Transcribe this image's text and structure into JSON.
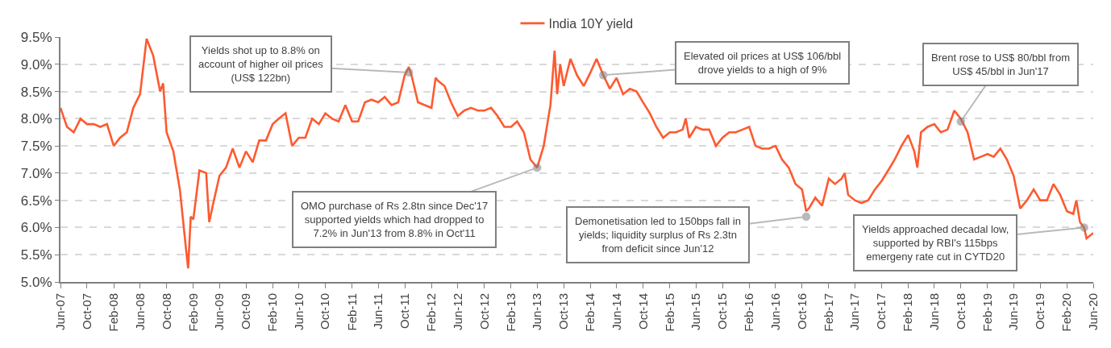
{
  "chart_data": {
    "type": "line",
    "x": [
      "2007-06-01",
      "2007-07-01",
      "2007-08-01",
      "2007-09-01",
      "2007-10-01",
      "2007-11-01",
      "2007-12-01",
      "2008-01-01",
      "2008-02-01",
      "2008-03-01",
      "2008-04-01",
      "2008-05-01",
      "2008-06-01",
      "2008-07-01",
      "2008-08-01",
      "2008-09-01",
      "2008-09-15",
      "2008-10-01",
      "2008-11-01",
      "2008-12-01",
      "2009-01-01",
      "2009-01-08",
      "2009-01-20",
      "2009-02-01",
      "2009-03-01",
      "2009-04-01",
      "2009-04-15",
      "2009-05-01",
      "2009-06-01",
      "2009-07-01",
      "2009-08-01",
      "2009-09-01",
      "2009-10-01",
      "2009-11-01",
      "2009-12-01",
      "2010-01-01",
      "2010-02-01",
      "2010-03-01",
      "2010-04-01",
      "2010-05-01",
      "2010-06-01",
      "2010-07-01",
      "2010-08-01",
      "2010-09-01",
      "2010-10-01",
      "2010-11-01",
      "2010-12-01",
      "2011-01-01",
      "2011-02-01",
      "2011-03-01",
      "2011-04-01",
      "2011-05-01",
      "2011-06-01",
      "2011-07-01",
      "2011-08-01",
      "2011-09-01",
      "2011-10-01",
      "2011-10-20",
      "2011-11-01",
      "2011-12-01",
      "2012-01-01",
      "2012-02-01",
      "2012-02-20",
      "2012-03-01",
      "2012-04-01",
      "2012-05-01",
      "2012-06-01",
      "2012-07-01",
      "2012-08-01",
      "2012-09-01",
      "2012-10-01",
      "2012-11-01",
      "2012-12-01",
      "2013-01-01",
      "2013-02-01",
      "2013-03-01",
      "2013-04-01",
      "2013-05-01",
      "2013-06-01",
      "2013-07-01",
      "2013-08-01",
      "2013-08-20",
      "2013-09-01",
      "2013-09-15",
      "2013-10-01",
      "2013-11-01",
      "2013-12-01",
      "2014-01-01",
      "2014-02-01",
      "2014-03-01",
      "2014-04-01",
      "2014-05-01",
      "2014-06-01",
      "2014-07-01",
      "2014-08-01",
      "2014-09-01",
      "2014-10-01",
      "2014-11-01",
      "2014-12-01",
      "2015-01-01",
      "2015-02-01",
      "2015-03-01",
      "2015-04-01",
      "2015-04-15",
      "2015-05-01",
      "2015-06-01",
      "2015-07-01",
      "2015-08-01",
      "2015-09-01",
      "2015-10-01",
      "2015-11-01",
      "2015-12-01",
      "2016-01-01",
      "2016-02-01",
      "2016-03-01",
      "2016-04-01",
      "2016-05-01",
      "2016-06-01",
      "2016-07-01",
      "2016-08-01",
      "2016-09-01",
      "2016-10-01",
      "2016-10-20",
      "2016-11-01",
      "2016-12-01",
      "2017-01-01",
      "2017-02-01",
      "2017-03-01",
      "2017-04-01",
      "2017-04-15",
      "2017-05-01",
      "2017-06-01",
      "2017-07-01",
      "2017-08-01",
      "2017-09-01",
      "2017-10-01",
      "2017-11-01",
      "2017-12-01",
      "2018-01-01",
      "2018-02-01",
      "2018-03-01",
      "2018-03-15",
      "2018-04-01",
      "2018-05-01",
      "2018-06-01",
      "2018-07-01",
      "2018-08-01",
      "2018-09-01",
      "2018-10-01",
      "2018-11-01",
      "2018-12-01",
      "2019-01-01",
      "2019-02-01",
      "2019-03-01",
      "2019-04-01",
      "2019-05-01",
      "2019-06-01",
      "2019-07-01",
      "2019-08-01",
      "2019-09-01",
      "2019-10-01",
      "2019-11-01",
      "2019-12-01",
      "2020-01-01",
      "2020-02-01",
      "2020-03-01",
      "2020-03-15",
      "2020-04-01",
      "2020-04-20",
      "2020-05-01",
      "2020-06-01"
    ],
    "series": [
      {
        "name": "India 10Y yield",
        "color": "#fe5a30",
        "values": [
          8.2,
          7.85,
          7.75,
          8.0,
          7.9,
          7.9,
          7.85,
          7.9,
          7.5,
          7.65,
          7.75,
          8.2,
          8.45,
          9.47,
          9.15,
          8.5,
          8.65,
          7.75,
          7.4,
          6.7,
          5.5,
          5.25,
          6.2,
          6.15,
          7.05,
          7.0,
          6.1,
          6.4,
          6.95,
          7.1,
          7.45,
          7.1,
          7.4,
          7.2,
          7.6,
          7.6,
          7.9,
          8.0,
          8.1,
          7.5,
          7.65,
          7.65,
          8.0,
          7.9,
          8.1,
          8.0,
          7.95,
          8.25,
          7.95,
          7.95,
          8.3,
          8.35,
          8.3,
          8.4,
          8.25,
          8.3,
          8.8,
          8.95,
          8.8,
          8.3,
          8.25,
          8.2,
          8.75,
          8.7,
          8.6,
          8.3,
          8.05,
          8.15,
          8.2,
          8.15,
          8.15,
          8.2,
          8.05,
          7.85,
          7.85,
          7.95,
          7.75,
          7.25,
          7.1,
          7.5,
          8.25,
          9.25,
          8.45,
          9.0,
          8.6,
          9.1,
          8.8,
          8.6,
          8.85,
          9.1,
          8.8,
          8.55,
          8.75,
          8.45,
          8.55,
          8.5,
          8.3,
          8.1,
          7.85,
          7.65,
          7.75,
          7.75,
          7.8,
          8.0,
          7.65,
          7.85,
          7.8,
          7.8,
          7.5,
          7.65,
          7.75,
          7.75,
          7.8,
          7.85,
          7.5,
          7.45,
          7.45,
          7.5,
          7.25,
          7.1,
          6.8,
          6.7,
          6.3,
          6.35,
          6.55,
          6.4,
          6.9,
          6.8,
          6.9,
          7.0,
          6.6,
          6.5,
          6.45,
          6.5,
          6.7,
          6.85,
          7.05,
          7.25,
          7.5,
          7.7,
          7.4,
          7.1,
          7.75,
          7.85,
          7.9,
          7.75,
          7.8,
          8.15,
          8.0,
          7.75,
          7.25,
          7.3,
          7.35,
          7.3,
          7.45,
          7.25,
          6.95,
          6.35,
          6.5,
          6.7,
          6.5,
          6.5,
          6.8,
          6.6,
          6.3,
          6.25,
          6.5,
          6.1,
          6.0,
          5.8,
          5.9
        ]
      }
    ],
    "xlim": [
      "2007-06-01",
      "2020-06-01"
    ],
    "xticks": [
      {
        "value": "2007-06-01",
        "label": "Jun-07"
      },
      {
        "value": "2007-10-01",
        "label": "Oct-07"
      },
      {
        "value": "2008-02-01",
        "label": "Feb-08"
      },
      {
        "value": "2008-06-01",
        "label": "Jun-08"
      },
      {
        "value": "2008-10-01",
        "label": "Oct-08"
      },
      {
        "value": "2009-02-01",
        "label": "Feb-09"
      },
      {
        "value": "2009-06-01",
        "label": "Jun-09"
      },
      {
        "value": "2009-10-01",
        "label": "Oct-09"
      },
      {
        "value": "2010-02-01",
        "label": "Feb-10"
      },
      {
        "value": "2010-06-01",
        "label": "Jun-10"
      },
      {
        "value": "2010-10-01",
        "label": "Oct-10"
      },
      {
        "value": "2011-02-01",
        "label": "Feb-11"
      },
      {
        "value": "2011-06-01",
        "label": "Jun-11"
      },
      {
        "value": "2011-10-01",
        "label": "Oct-11"
      },
      {
        "value": "2012-02-01",
        "label": "Feb-12"
      },
      {
        "value": "2012-06-01",
        "label": "Jun-12"
      },
      {
        "value": "2012-10-01",
        "label": "Oct-12"
      },
      {
        "value": "2013-02-01",
        "label": "Feb-13"
      },
      {
        "value": "2013-06-01",
        "label": "Jun-13"
      },
      {
        "value": "2013-10-01",
        "label": "Oct-13"
      },
      {
        "value": "2014-02-01",
        "label": "Feb-14"
      },
      {
        "value": "2014-06-01",
        "label": "Jun-14"
      },
      {
        "value": "2014-10-01",
        "label": "Oct-14"
      },
      {
        "value": "2015-02-01",
        "label": "Feb-15"
      },
      {
        "value": "2015-06-01",
        "label": "Jun-15"
      },
      {
        "value": "2015-10-01",
        "label": "Oct-15"
      },
      {
        "value": "2016-02-01",
        "label": "Feb-16"
      },
      {
        "value": "2016-06-01",
        "label": "Jun-16"
      },
      {
        "value": "2016-10-01",
        "label": "Oct-16"
      },
      {
        "value": "2017-02-01",
        "label": "Feb-17"
      },
      {
        "value": "2017-06-01",
        "label": "Jun-17"
      },
      {
        "value": "2017-10-01",
        "label": "Oct-17"
      },
      {
        "value": "2018-02-01",
        "label": "Feb-18"
      },
      {
        "value": "2018-06-01",
        "label": "Jun-18"
      },
      {
        "value": "2018-10-01",
        "label": "Oct-18"
      },
      {
        "value": "2019-02-01",
        "label": "Feb-19"
      },
      {
        "value": "2019-06-01",
        "label": "Jun-19"
      },
      {
        "value": "2019-10-01",
        "label": "Oct-19"
      },
      {
        "value": "2020-02-01",
        "label": "Feb-20"
      },
      {
        "value": "2020-06-01",
        "label": "Jun-20"
      }
    ],
    "ylim": [
      5.0,
      9.5
    ],
    "yticks": [
      {
        "value": 5.0,
        "label": "5.0%"
      },
      {
        "value": 5.5,
        "label": "5.5%"
      },
      {
        "value": 6.0,
        "label": "6.0%"
      },
      {
        "value": 6.5,
        "label": "6.5%"
      },
      {
        "value": 7.0,
        "label": "7.0%"
      },
      {
        "value": 7.5,
        "label": "7.5%"
      },
      {
        "value": 8.0,
        "label": "8.0%"
      },
      {
        "value": 8.5,
        "label": "8.5%"
      },
      {
        "value": 9.0,
        "label": "9.0%"
      },
      {
        "value": 9.5,
        "label": "9.5%"
      }
    ],
    "grid": "y",
    "legend": "top",
    "marker": "none",
    "line_style": "solid",
    "annotations": [
      {
        "text": "Yields shot up to 8.8% on\naccount of higher oil prices\n(US$ 122bn)",
        "x": "2011-10-20",
        "y": 8.85
      },
      {
        "text": "OMO purchase of Rs 2.8tn since Dec'17\nsupported yields which had dropped to\n7.2% in Jun'13 from 8.8% in Oct'11",
        "x": "2013-06-01",
        "y": 7.1
      },
      {
        "text": "Elevated oil prices at US$ 106/bbl\ndrove yields to a high of 9%",
        "x": "2014-04-01",
        "y": 8.8
      },
      {
        "text": "Demonetisation led to 150bps fall in\nyields; liquidity surplus of Rs 2.3tn\nfrom deficit since Jun'12",
        "x": "2016-10-20",
        "y": 6.2
      },
      {
        "text": "Brent rose to US$ 80/bbl from\nUS$ 45/bbl in Jun'17",
        "x": "2018-10-01",
        "y": 7.95
      },
      {
        "text": "Yields approached decadal low,\nsupported by RBI's 115bps\nemergeny rate cut in CYTD20",
        "x": "2020-04-20",
        "y": 6.0
      }
    ]
  }
}
